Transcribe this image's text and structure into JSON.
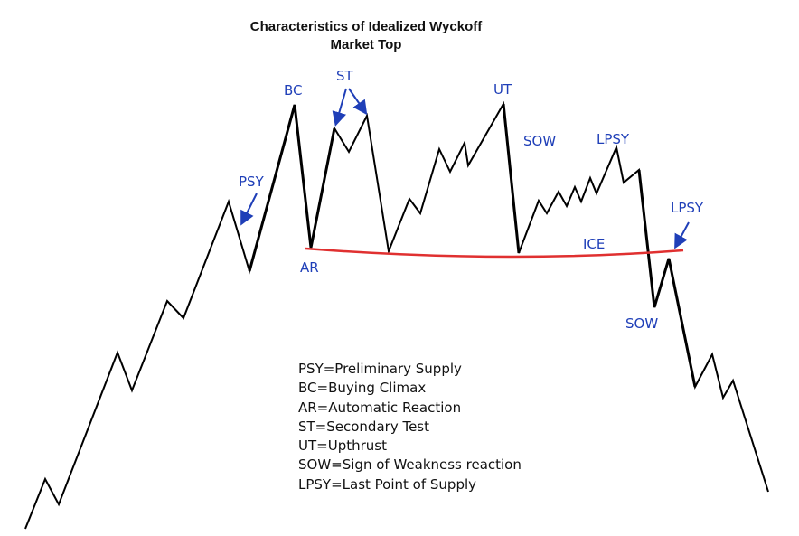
{
  "title": {
    "line1": "Characteristics of Idealized Wyckoff",
    "line2": "Market Top"
  },
  "labels": {
    "psy": "PSY",
    "bc": "BC",
    "st": "ST",
    "ar": "AR",
    "ut": "UT",
    "sow_upper": "SOW",
    "lpsy_upper": "LPSY",
    "ice": "ICE",
    "lpsy_right": "LPSY",
    "sow_lower": "SOW"
  },
  "legend": [
    "PSY=Preliminary Supply",
    "BC=Buying Climax",
    "AR=Automatic Reaction",
    "ST=Secondary Test",
    "UT=Upthrust",
    "SOW=Sign of Weakness reaction",
    "LPSY=Last Point of Supply"
  ],
  "colors": {
    "price_line": "#000000",
    "ice_line": "#e03030",
    "label": "#1f3fb8",
    "arrow": "#1f3fb8"
  }
}
